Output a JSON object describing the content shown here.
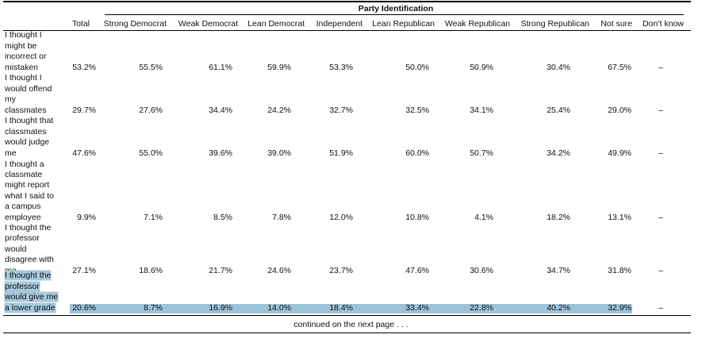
{
  "table": {
    "group_header": "Party Identification",
    "columns": [
      "Total",
      "Strong Democrat",
      "Weak Democrat",
      "Lean Democrat",
      "Independent",
      "Lean Republican",
      "Weak Republican",
      "Strong Republican",
      "Not sure",
      "Don’t know"
    ],
    "rows": [
      {
        "label_lines": [
          "I thought I",
          "might be",
          "incorrect or",
          "mistaken"
        ],
        "values": [
          "53.2%",
          "55.5%",
          "61.1%",
          "59.9%",
          "53.3%",
          "50.0%",
          "50.9%",
          "30.4%",
          "67.5%",
          "–"
        ],
        "highlighted": false
      },
      {
        "label_lines": [
          "I thought I",
          "would offend",
          "my",
          "classmates"
        ],
        "values": [
          "29.7%",
          "27.6%",
          "34.4%",
          "24.2%",
          "32.7%",
          "32.5%",
          "34.1%",
          "25.4%",
          "29.0%",
          "–"
        ],
        "highlighted": false
      },
      {
        "label_lines": [
          "I thought that",
          "classmates",
          "would judge",
          "me"
        ],
        "values": [
          "47.6%",
          "55.0%",
          "39.6%",
          "39.0%",
          "51.9%",
          "60.0%",
          "50.7%",
          "34.2%",
          "49.9%",
          "–"
        ],
        "highlighted": false
      },
      {
        "label_lines": [
          "I thought a",
          "classmate",
          "might report",
          "what I said to",
          "a campus",
          "employee"
        ],
        "values": [
          "9.9%",
          "7.1%",
          "8.5%",
          "7.8%",
          "12.0%",
          "10.8%",
          "4.1%",
          "18.2%",
          "13.1%",
          "–"
        ],
        "highlighted": false
      },
      {
        "label_lines": [
          "I thought the",
          "professor",
          "would",
          "disagree with",
          "me"
        ],
        "values": [
          "27.1%",
          "18.6%",
          "21.7%",
          "24.6%",
          "23.7%",
          "47.6%",
          "30.6%",
          "34.7%",
          "31.8%",
          "–"
        ],
        "highlighted": false
      },
      {
        "label_lines": [
          "I thought the",
          "professor",
          "would give me",
          "a lower grade"
        ],
        "values": [
          "20.6%",
          "8.7%",
          "16.9%",
          "14.0%",
          "18.4%",
          "33.4%",
          "22.8%",
          "40.2%",
          "32.9%",
          "–"
        ],
        "highlighted": true
      }
    ],
    "footer": "continued on the next page . . ."
  }
}
